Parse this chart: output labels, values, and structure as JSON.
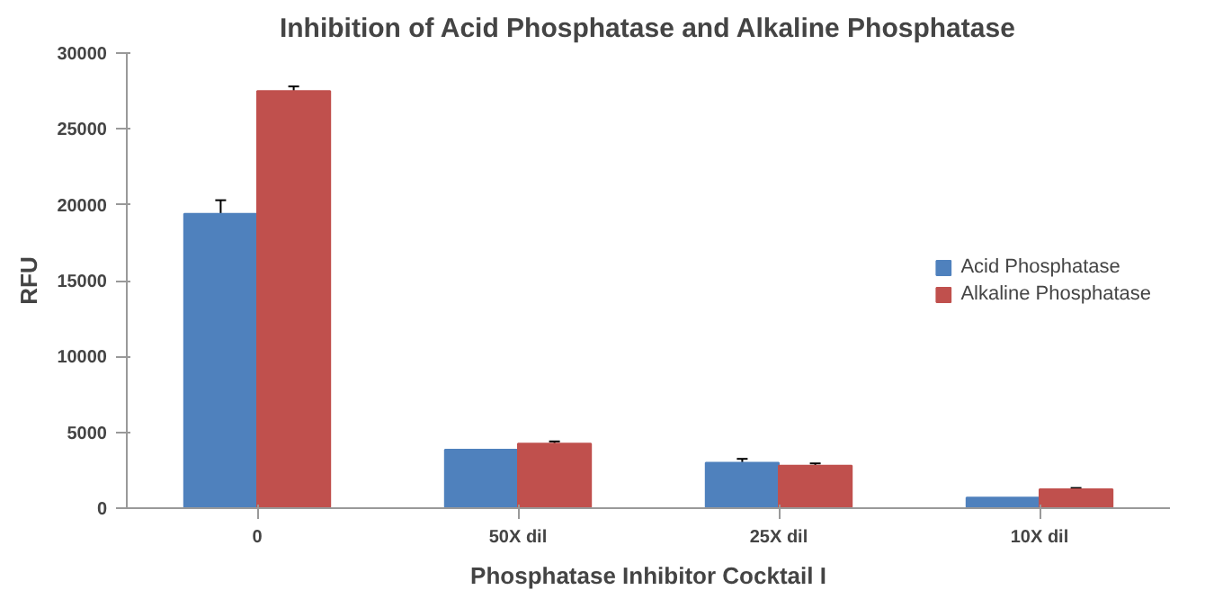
{
  "chart_data": {
    "type": "bar",
    "title": "Inhibition of Acid Phosphatase and Alkaline Phosphatase",
    "xlabel": "Phosphatase Inhibitor Cocktail I",
    "ylabel": "RFU",
    "categories": [
      "0",
      "50X dil",
      "25X dil",
      "10X dil"
    ],
    "series": [
      {
        "name": "Acid Phosphatase",
        "color": "#4f81bd",
        "values": [
          19400,
          3850,
          3000,
          700
        ],
        "errors": [
          900,
          null,
          250,
          null
        ]
      },
      {
        "name": "Alkaline Phosphatase",
        "color": "#c0504d",
        "values": [
          27500,
          4250,
          2800,
          1250
        ],
        "errors": [
          300,
          150,
          150,
          80
        ]
      }
    ],
    "ylim": [
      0,
      30000
    ],
    "yticks": [
      0,
      5000,
      10000,
      15000,
      20000,
      25000,
      30000
    ],
    "grid": false,
    "legend": "right"
  }
}
